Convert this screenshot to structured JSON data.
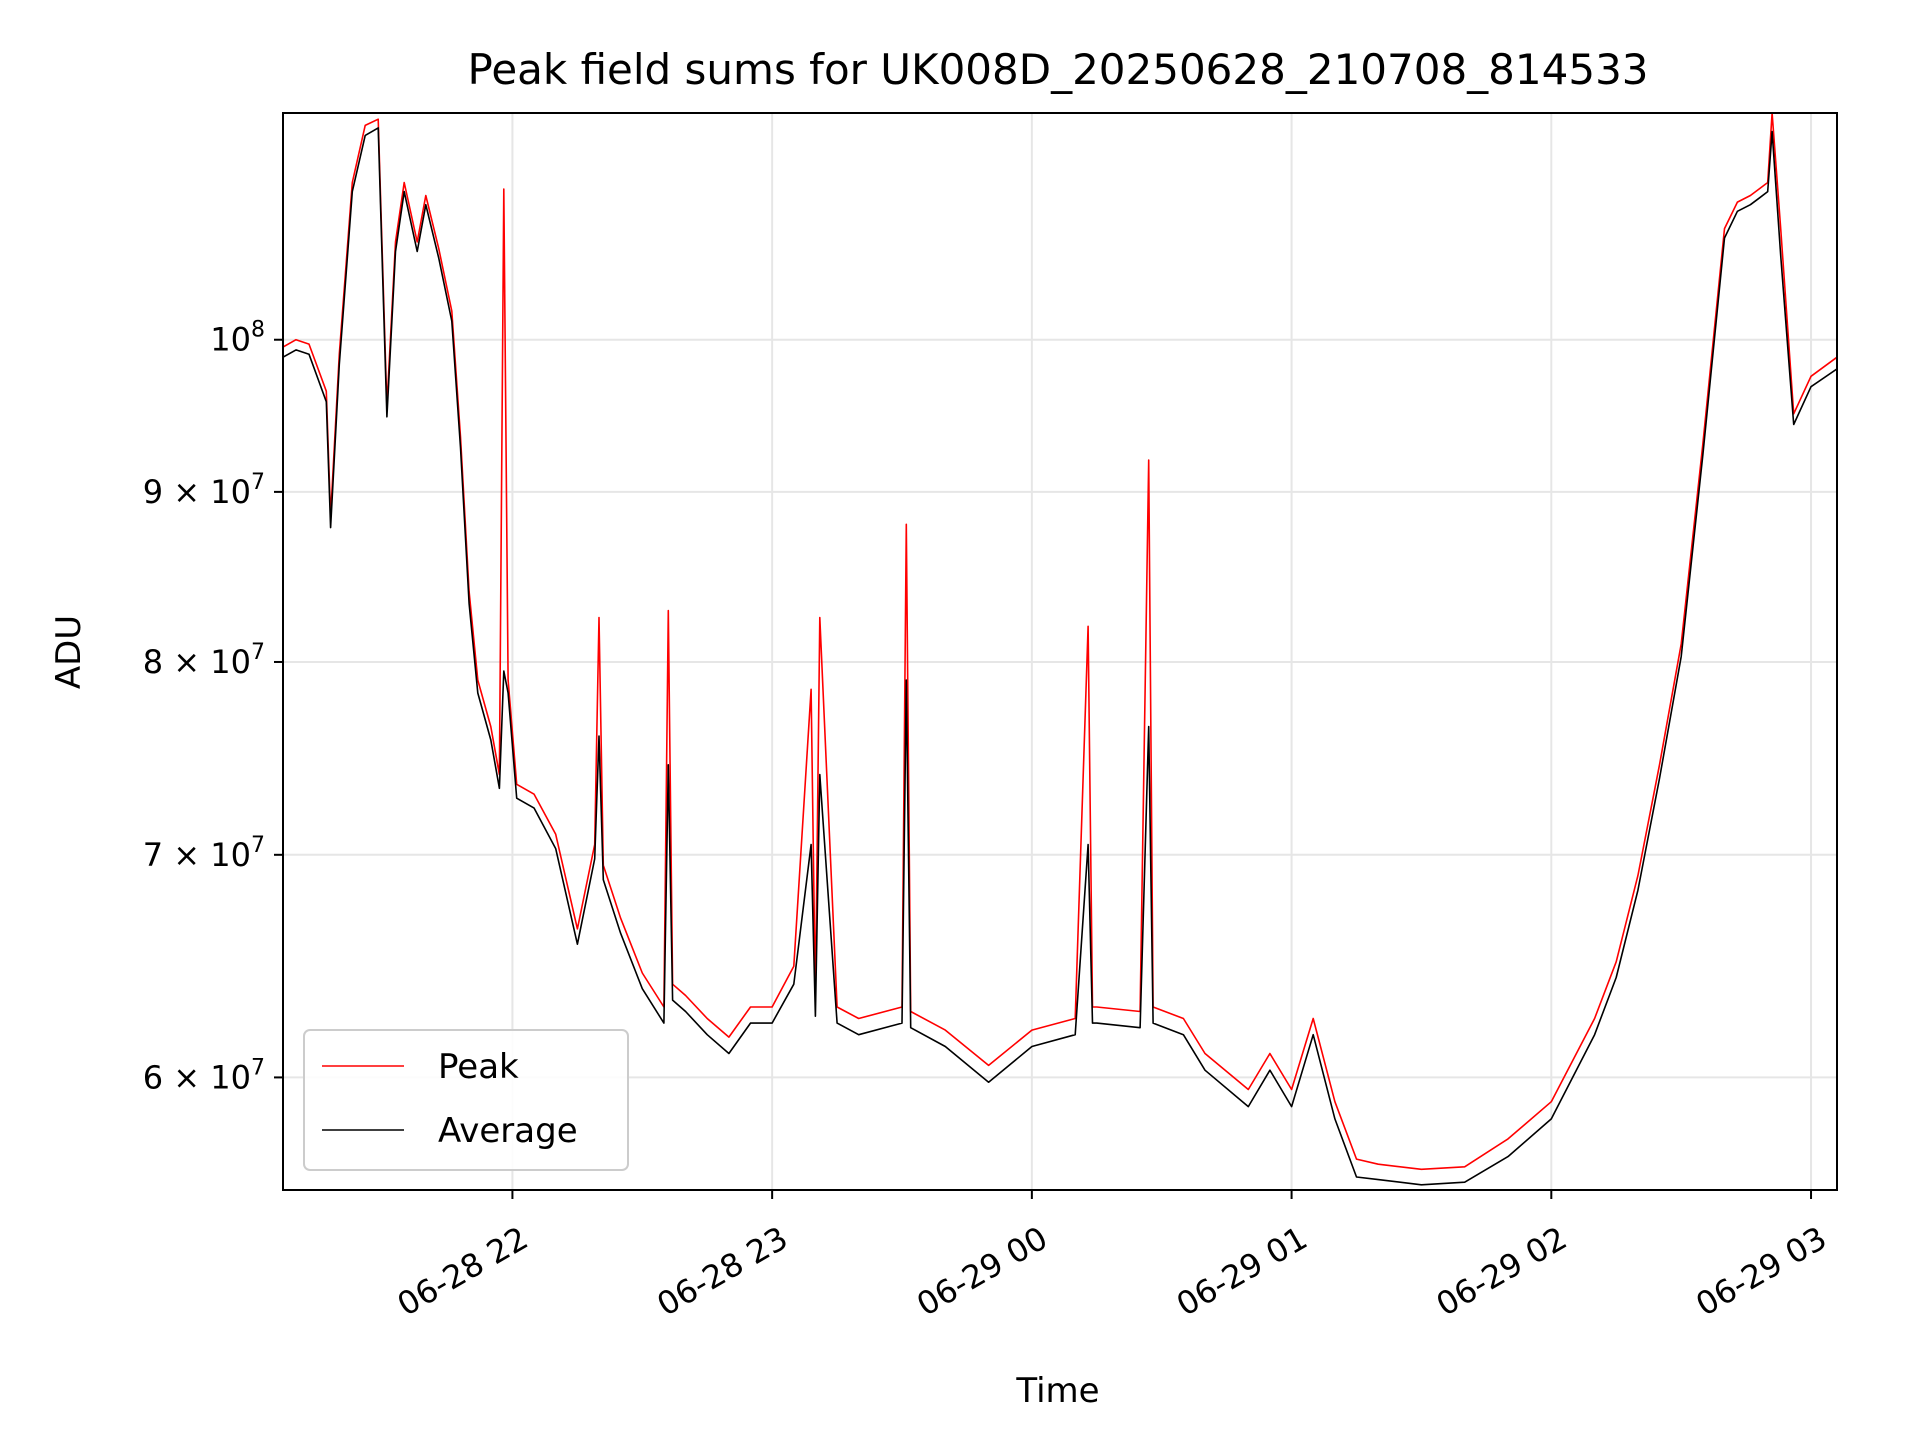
{
  "chart_data": {
    "type": "line",
    "title": "Peak field sums for UK008D_20250628_210708_814533",
    "xlabel": "Time",
    "ylabel": "ADU",
    "y_scale": "log",
    "grid": true,
    "legend_position": "lower-left",
    "xlim": [
      "2025-06-28 21:07",
      "2025-06-29 03:06"
    ],
    "ylim": [
      55500000,
      117000000
    ],
    "x_ticks": [
      {
        "value": "2025-06-28 22:00",
        "label": "06-28 22"
      },
      {
        "value": "2025-06-28 23:00",
        "label": "06-28 23"
      },
      {
        "value": "2025-06-29 00:00",
        "label": "06-29 00"
      },
      {
        "value": "2025-06-29 01:00",
        "label": "06-29 01"
      },
      {
        "value": "2025-06-29 02:00",
        "label": "06-29 02"
      },
      {
        "value": "2025-06-29 03:00",
        "label": "06-29 03"
      }
    ],
    "y_ticks": [
      {
        "value": 60000000,
        "mantissa": "6",
        "base": "10",
        "exp": "7"
      },
      {
        "value": 70000000,
        "mantissa": "7",
        "base": "10",
        "exp": "7"
      },
      {
        "value": 80000000,
        "mantissa": "8",
        "base": "10",
        "exp": "7"
      },
      {
        "value": 90000000,
        "mantissa": "9",
        "base": "10",
        "exp": "7"
      },
      {
        "value": 100000000,
        "mantissa": "",
        "base": "10",
        "exp": "8"
      }
    ],
    "series": [
      {
        "name": "Peak",
        "color": "#ff0000",
        "x": [
          "2025-06-28 21:07",
          "2025-06-28 21:10",
          "2025-06-28 21:13",
          "2025-06-28 21:17",
          "2025-06-28 21:18",
          "2025-06-28 21:20",
          "2025-06-28 21:23",
          "2025-06-28 21:26",
          "2025-06-28 21:29",
          "2025-06-28 21:31",
          "2025-06-28 21:33",
          "2025-06-28 21:35",
          "2025-06-28 21:38",
          "2025-06-28 21:40",
          "2025-06-28 21:43",
          "2025-06-28 21:46",
          "2025-06-28 21:48",
          "2025-06-28 21:50",
          "2025-06-28 21:52",
          "2025-06-28 21:55",
          "2025-06-28 21:57",
          "2025-06-28 21:58",
          "2025-06-28 21:59",
          "2025-06-28 22:01",
          "2025-06-28 22:05",
          "2025-06-28 22:10",
          "2025-06-28 22:15",
          "2025-06-28 22:19",
          "2025-06-28 22:20",
          "2025-06-28 22:21",
          "2025-06-28 22:25",
          "2025-06-28 22:30",
          "2025-06-28 22:35",
          "2025-06-28 22:36",
          "2025-06-28 22:37",
          "2025-06-28 22:40",
          "2025-06-28 22:45",
          "2025-06-28 22:50",
          "2025-06-28 22:55",
          "2025-06-28 23:00",
          "2025-06-28 23:05",
          "2025-06-28 23:09",
          "2025-06-28 23:10",
          "2025-06-28 23:11",
          "2025-06-28 23:15",
          "2025-06-28 23:20",
          "2025-06-28 23:30",
          "2025-06-28 23:31",
          "2025-06-28 23:32",
          "2025-06-28 23:40",
          "2025-06-28 23:50",
          "2025-06-29 00:00",
          "2025-06-29 00:10",
          "2025-06-29 00:13",
          "2025-06-29 00:14",
          "2025-06-29 00:15",
          "2025-06-29 00:25",
          "2025-06-29 00:27",
          "2025-06-29 00:28",
          "2025-06-29 00:35",
          "2025-06-29 00:40",
          "2025-06-29 00:50",
          "2025-06-29 00:55",
          "2025-06-29 01:00",
          "2025-06-29 01:05",
          "2025-06-29 01:10",
          "2025-06-29 01:15",
          "2025-06-29 01:20",
          "2025-06-29 01:30",
          "2025-06-29 01:40",
          "2025-06-29 01:50",
          "2025-06-29 02:00",
          "2025-06-29 02:10",
          "2025-06-29 02:15",
          "2025-06-29 02:20",
          "2025-06-29 02:25",
          "2025-06-29 02:30",
          "2025-06-29 02:35",
          "2025-06-29 02:40",
          "2025-06-29 02:43",
          "2025-06-29 02:46",
          "2025-06-29 02:48",
          "2025-06-29 02:50",
          "2025-06-29 02:51",
          "2025-06-29 02:53",
          "2025-06-29 02:56",
          "2025-06-29 03:00",
          "2025-06-29 03:06"
        ],
        "values": [
          99500000,
          100000000,
          99700000,
          96500000,
          88500000,
          99000000,
          111500000,
          116000000,
          116500000,
          95500000,
          107000000,
          111500000,
          107000000,
          110500000,
          106500000,
          102000000,
          93500000,
          84000000,
          79000000,
          76500000,
          74000000,
          111000000,
          79000000,
          73500000,
          73000000,
          71000000,
          66500000,
          70500000,
          82500000,
          69500000,
          67000000,
          64500000,
          63000000,
          82900000,
          64000000,
          63500000,
          62500000,
          61700000,
          63000000,
          63000000,
          64800000,
          78500000,
          63300000,
          82500000,
          63000000,
          62500000,
          63000000,
          88000000,
          62800000,
          62000000,
          60500000,
          62000000,
          62500000,
          82000000,
          63000000,
          63000000,
          62800000,
          92000000,
          63000000,
          62500000,
          61000000,
          59500000,
          61000000,
          59500000,
          62500000,
          59000000,
          56700000,
          56500000,
          56300000,
          56400000,
          57500000,
          59000000,
          62500000,
          65000000,
          69000000,
          74500000,
          81000000,
          93000000,
          108000000,
          110000000,
          110500000,
          111000000,
          111500000,
          117000000,
          108000000,
          95000000,
          97500000,
          98800000
        ]
      },
      {
        "name": "Average",
        "color": "#000000",
        "x": [
          "2025-06-28 21:07",
          "2025-06-28 21:10",
          "2025-06-28 21:13",
          "2025-06-28 21:17",
          "2025-06-28 21:18",
          "2025-06-28 21:20",
          "2025-06-28 21:23",
          "2025-06-28 21:26",
          "2025-06-28 21:29",
          "2025-06-28 21:31",
          "2025-06-28 21:33",
          "2025-06-28 21:35",
          "2025-06-28 21:38",
          "2025-06-28 21:40",
          "2025-06-28 21:43",
          "2025-06-28 21:46",
          "2025-06-28 21:48",
          "2025-06-28 21:50",
          "2025-06-28 21:52",
          "2025-06-28 21:55",
          "2025-06-28 21:57",
          "2025-06-28 21:58",
          "2025-06-28 21:59",
          "2025-06-28 22:01",
          "2025-06-28 22:05",
          "2025-06-28 22:10",
          "2025-06-28 22:15",
          "2025-06-28 22:19",
          "2025-06-28 22:20",
          "2025-06-28 22:21",
          "2025-06-28 22:25",
          "2025-06-28 22:30",
          "2025-06-28 22:35",
          "2025-06-28 22:36",
          "2025-06-28 22:37",
          "2025-06-28 22:40",
          "2025-06-28 22:45",
          "2025-06-28 22:50",
          "2025-06-28 22:55",
          "2025-06-28 23:00",
          "2025-06-28 23:05",
          "2025-06-28 23:09",
          "2025-06-28 23:10",
          "2025-06-28 23:11",
          "2025-06-28 23:15",
          "2025-06-28 23:20",
          "2025-06-28 23:30",
          "2025-06-28 23:31",
          "2025-06-28 23:32",
          "2025-06-28 23:40",
          "2025-06-28 23:50",
          "2025-06-29 00:00",
          "2025-06-29 00:10",
          "2025-06-29 00:13",
          "2025-06-29 00:14",
          "2025-06-29 00:15",
          "2025-06-29 00:25",
          "2025-06-29 00:27",
          "2025-06-29 00:28",
          "2025-06-29 00:35",
          "2025-06-29 00:40",
          "2025-06-29 00:50",
          "2025-06-29 00:55",
          "2025-06-29 01:00",
          "2025-06-29 01:05",
          "2025-06-29 01:10",
          "2025-06-29 01:15",
          "2025-06-29 01:20",
          "2025-06-29 01:30",
          "2025-06-29 01:40",
          "2025-06-29 01:50",
          "2025-06-29 02:00",
          "2025-06-29 02:10",
          "2025-06-29 02:15",
          "2025-06-29 02:20",
          "2025-06-29 02:25",
          "2025-06-29 02:30",
          "2025-06-29 02:35",
          "2025-06-29 02:40",
          "2025-06-29 02:43",
          "2025-06-29 02:46",
          "2025-06-29 02:48",
          "2025-06-29 02:50",
          "2025-06-29 02:51",
          "2025-06-29 02:53",
          "2025-06-29 02:56",
          "2025-06-29 03:00",
          "2025-06-29 03:06"
        ],
        "values": [
          98800000,
          99300000,
          99000000,
          95800000,
          87800000,
          98300000,
          110800000,
          115200000,
          115800000,
          94800000,
          106300000,
          110800000,
          106300000,
          109800000,
          105800000,
          101300000,
          92800000,
          83300000,
          78300000,
          75800000,
          73300000,
          79500000,
          78300000,
          72800000,
          72300000,
          70300000,
          65800000,
          69800000,
          76000000,
          68800000,
          66300000,
          63800000,
          62300000,
          74500000,
          63300000,
          62800000,
          61800000,
          61000000,
          62300000,
          62300000,
          64000000,
          70500000,
          62600000,
          74000000,
          62300000,
          61800000,
          62300000,
          79000000,
          62100000,
          61300000,
          59800000,
          61300000,
          61800000,
          70500000,
          62300000,
          62300000,
          62100000,
          76500000,
          62300000,
          61800000,
          60300000,
          58800000,
          60300000,
          58800000,
          61800000,
          58300000,
          56000000,
          55900000,
          55700000,
          55800000,
          56800000,
          58300000,
          61800000,
          64300000,
          68300000,
          73800000,
          80300000,
          92300000,
          107300000,
          109300000,
          109800000,
          110300000,
          110800000,
          115500000,
          106000000,
          94300000,
          96800000,
          98000000
        ]
      }
    ]
  }
}
